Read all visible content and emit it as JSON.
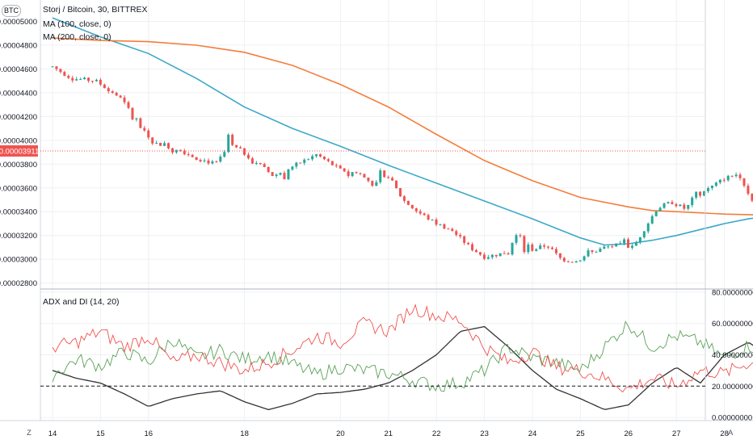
{
  "symbol_badge": "BTC",
  "corner_left": "Z",
  "corner_right": "A",
  "legend": {
    "title": "Storj / Bitcoin, 30, BITTREX",
    "ma1": "MA (100, close, 0)",
    "ma2": "MA (200, close, 0)",
    "adx": "ADX and DI (14, 20)"
  },
  "colors": {
    "up": "#26a69a",
    "down": "#ef5350",
    "ma100": "#3ba8c8",
    "ma200": "#f57c3b",
    "adx": "#333333",
    "di_plus": "#5aa157",
    "di_minus": "#ef5350",
    "last_price_bg": "#ef5350",
    "grid": "#eef0f3"
  },
  "chart_data": [
    {
      "type": "candlestick",
      "title": "Storj / Bitcoin, 30, BITTREX",
      "x_labels": [
        "14",
        "15",
        "16",
        "18",
        "20",
        "21",
        "22",
        "23",
        "24",
        "25",
        "26",
        "27",
        "28"
      ],
      "x_label_days": [
        0,
        1,
        2,
        4,
        6,
        7,
        8,
        9,
        10,
        11,
        12,
        13,
        14
      ],
      "y_ticks": [
        "0.00005000",
        "0.00004800",
        "0.00004600",
        "0.00004400",
        "0.00004200",
        "0.00004000",
        "0.00003800",
        "0.00003600",
        "0.00003400",
        "0.00003200",
        "0.00003000",
        "0.00002800"
      ],
      "y_tick_values": [
        5.0,
        4.8,
        4.6,
        4.4,
        4.2,
        4.0,
        3.8,
        3.6,
        3.4,
        3.2,
        3.0,
        2.8
      ],
      "ylim": [
        2.75,
        5.18
      ],
      "y_unit_multiplier": "1e-5",
      "last_price": "0.00003911",
      "last_price_value": 3.911,
      "price_path": [
        [
          0,
          4.62
        ],
        [
          0.4,
          4.52
        ],
        [
          0.9,
          4.5
        ],
        [
          1.4,
          4.36
        ],
        [
          1.8,
          4.15
        ],
        [
          2.1,
          3.98
        ],
        [
          2.6,
          3.93
        ],
        [
          3.0,
          3.85
        ],
        [
          3.4,
          3.8
        ],
        [
          3.7,
          3.96
        ],
        [
          3.9,
          3.92
        ],
        [
          4.3,
          3.8
        ],
        [
          4.6,
          3.7
        ],
        [
          5.0,
          3.78
        ],
        [
          5.5,
          3.88
        ],
        [
          5.7,
          3.83
        ],
        [
          6.0,
          3.75
        ],
        [
          6.4,
          3.72
        ],
        [
          6.7,
          3.62
        ],
        [
          7.0,
          3.7
        ],
        [
          7.3,
          3.5
        ],
        [
          7.6,
          3.4
        ],
        [
          8.0,
          3.3
        ],
        [
          8.3,
          3.25
        ],
        [
          8.7,
          3.1
        ],
        [
          9.0,
          3.02
        ],
        [
          9.4,
          3.05
        ],
        [
          9.7,
          3.2
        ],
        [
          10.0,
          3.08
        ],
        [
          10.3,
          3.12
        ],
        [
          10.6,
          3.0
        ],
        [
          10.9,
          2.98
        ],
        [
          11.2,
          3.05
        ],
        [
          11.5,
          3.1
        ],
        [
          11.8,
          3.12
        ],
        [
          12.1,
          3.1
        ],
        [
          12.4,
          3.3
        ],
        [
          12.6,
          3.43
        ],
        [
          12.9,
          3.48
        ],
        [
          13.2,
          3.42
        ],
        [
          13.4,
          3.55
        ],
        [
          13.7,
          3.6
        ],
        [
          14.0,
          3.68
        ],
        [
          14.3,
          3.72
        ],
        [
          14.6,
          3.48
        ],
        [
          14.9,
          3.55
        ],
        [
          15.2,
          3.7
        ],
        [
          15.45,
          3.8
        ],
        [
          15.6,
          3.911
        ]
      ],
      "series": [
        {
          "name": "MA (100, close, 0)",
          "points": [
            [
              0,
              5.03
            ],
            [
              1,
              4.87
            ],
            [
              2,
              4.73
            ],
            [
              3,
              4.52
            ],
            [
              4,
              4.28
            ],
            [
              5,
              4.1
            ],
            [
              6,
              3.95
            ],
            [
              7,
              3.79
            ],
            [
              8,
              3.64
            ],
            [
              9,
              3.49
            ],
            [
              10,
              3.34
            ],
            [
              11,
              3.18
            ],
            [
              11.5,
              3.12
            ],
            [
              12,
              3.13
            ],
            [
              12.5,
              3.16
            ],
            [
              13,
              3.2
            ],
            [
              13.5,
              3.25
            ],
            [
              14,
              3.3
            ],
            [
              14.5,
              3.34
            ],
            [
              15,
              3.37
            ],
            [
              15.6,
              3.4
            ]
          ]
        },
        {
          "name": "MA (200, close, 0)",
          "points": [
            [
              0,
              4.86
            ],
            [
              1,
              4.84
            ],
            [
              2,
              4.83
            ],
            [
              3,
              4.8
            ],
            [
              4,
              4.74
            ],
            [
              5,
              4.63
            ],
            [
              6,
              4.47
            ],
            [
              7,
              4.28
            ],
            [
              8,
              4.05
            ],
            [
              9,
              3.83
            ],
            [
              10,
              3.66
            ],
            [
              11,
              3.52
            ],
            [
              12,
              3.44
            ],
            [
              12.5,
              3.41
            ],
            [
              13,
              3.4
            ],
            [
              14,
              3.38
            ],
            [
              15,
              3.37
            ],
            [
              15.6,
              3.37
            ]
          ]
        }
      ]
    },
    {
      "type": "line",
      "title": "ADX and DI (14, 20)",
      "y_ticks": [
        "80.00000000",
        "60.00000000",
        "40.00000000",
        "20.00000000",
        "0.00000000"
      ],
      "y_tick_values": [
        80,
        60,
        40,
        20,
        0
      ],
      "ylim": [
        -2,
        82
      ],
      "threshold": 20,
      "series": [
        {
          "name": "ADX",
          "points": [
            [
              0,
              30
            ],
            [
              0.5,
              25
            ],
            [
              1,
              22
            ],
            [
              1.5,
              15
            ],
            [
              2,
              7
            ],
            [
              2.5,
              12
            ],
            [
              3,
              15
            ],
            [
              3.5,
              17
            ],
            [
              4,
              10
            ],
            [
              4.5,
              5
            ],
            [
              5,
              9
            ],
            [
              5.5,
              15
            ],
            [
              6,
              16
            ],
            [
              6.5,
              18
            ],
            [
              7,
              22
            ],
            [
              7.5,
              30
            ],
            [
              8,
              40
            ],
            [
              8.5,
              55
            ],
            [
              9,
              58
            ],
            [
              9.5,
              45
            ],
            [
              10,
              30
            ],
            [
              10.5,
              18
            ],
            [
              11,
              12
            ],
            [
              11.5,
              5
            ],
            [
              12,
              8
            ],
            [
              12.5,
              22
            ],
            [
              13,
              32
            ],
            [
              13.5,
              22
            ],
            [
              14,
              40
            ],
            [
              14.5,
              48
            ],
            [
              15,
              38
            ],
            [
              15.3,
              20
            ],
            [
              15.5,
              8
            ],
            [
              15.6,
              15
            ]
          ]
        },
        {
          "name": "+DI",
          "points": [
            [
              0,
              27
            ],
            [
              0.5,
              37
            ],
            [
              1,
              33
            ],
            [
              1.5,
              42
            ],
            [
              2,
              35
            ],
            [
              2.5,
              50
            ],
            [
              3,
              38
            ],
            [
              3.5,
              43
            ],
            [
              4,
              37
            ],
            [
              4.5,
              40
            ],
            [
              5,
              34
            ],
            [
              5.5,
              27
            ],
            [
              6,
              32
            ],
            [
              6.5,
              30
            ],
            [
              7,
              28
            ],
            [
              7.5,
              24
            ],
            [
              8,
              20
            ],
            [
              8.5,
              22
            ],
            [
              9,
              30
            ],
            [
              9.5,
              45
            ],
            [
              10,
              38
            ],
            [
              10.5,
              35
            ],
            [
              11,
              30
            ],
            [
              11.5,
              45
            ],
            [
              12,
              60
            ],
            [
              12.5,
              45
            ],
            [
              13,
              52
            ],
            [
              13.5,
              48
            ],
            [
              14,
              38
            ],
            [
              14.5,
              46
            ],
            [
              15,
              40
            ],
            [
              15.3,
              45
            ],
            [
              15.6,
              58
            ]
          ]
        },
        {
          "name": "-DI",
          "points": [
            [
              0,
              45
            ],
            [
              0.5,
              48
            ],
            [
              1,
              55
            ],
            [
              1.5,
              45
            ],
            [
              2,
              52
            ],
            [
              2.5,
              35
            ],
            [
              3,
              40
            ],
            [
              3.5,
              35
            ],
            [
              4,
              30
            ],
            [
              4.5,
              35
            ],
            [
              5,
              43
            ],
            [
              5.5,
              52
            ],
            [
              6,
              48
            ],
            [
              6.5,
              60
            ],
            [
              7,
              55
            ],
            [
              7.5,
              70
            ],
            [
              8,
              65
            ],
            [
              8.5,
              62
            ],
            [
              9,
              45
            ],
            [
              9.5,
              35
            ],
            [
              10,
              42
            ],
            [
              10.5,
              32
            ],
            [
              11,
              30
            ],
            [
              11.5,
              25
            ],
            [
              12,
              18
            ],
            [
              12.5,
              25
            ],
            [
              13,
              20
            ],
            [
              13.5,
              30
            ],
            [
              14,
              28
            ],
            [
              14.5,
              35
            ],
            [
              15,
              32
            ],
            [
              15.3,
              38
            ],
            [
              15.6,
              20
            ]
          ]
        }
      ]
    }
  ]
}
